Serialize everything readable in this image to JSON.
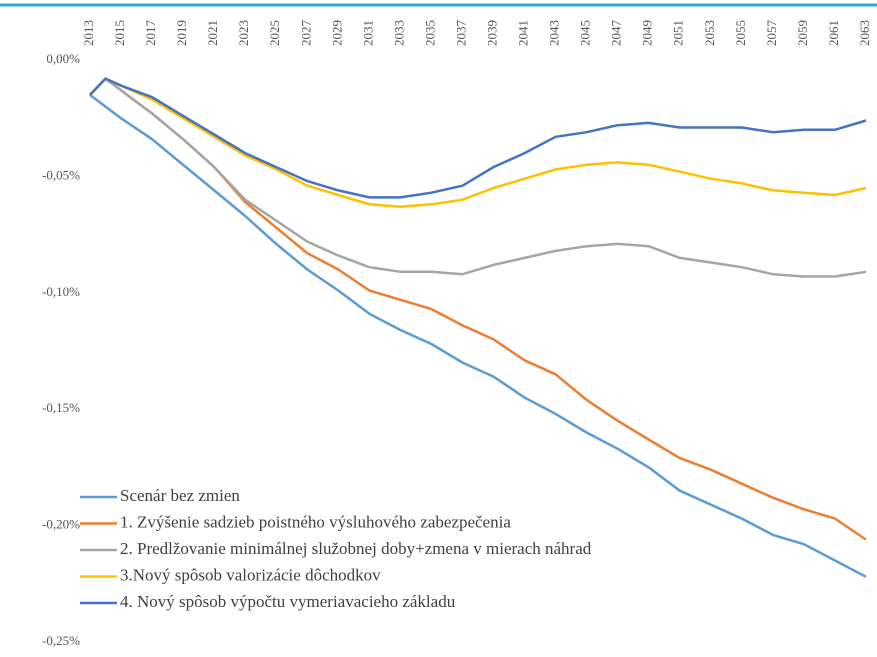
{
  "chart_data": {
    "type": "line",
    "x": [
      2013,
      2014,
      2015,
      2017,
      2019,
      2021,
      2023,
      2025,
      2027,
      2029,
      2031,
      2033,
      2035,
      2037,
      2039,
      2041,
      2043,
      2045,
      2047,
      2049,
      2051,
      2053,
      2055,
      2057,
      2059,
      2061,
      2063
    ],
    "xlim": [
      2013,
      2063
    ],
    "xticks": [
      2013,
      2015,
      2017,
      2019,
      2021,
      2023,
      2025,
      2027,
      2029,
      2031,
      2033,
      2035,
      2037,
      2039,
      2041,
      2043,
      2045,
      2047,
      2049,
      2051,
      2053,
      2055,
      2057,
      2059,
      2061,
      2063
    ],
    "ylim": [
      -0.25,
      0
    ],
    "yticks": [
      {
        "value": 0,
        "label": "0,00%"
      },
      {
        "value": -0.05,
        "label": "-0,05%"
      },
      {
        "value": -0.1,
        "label": "-0,10%"
      },
      {
        "value": -0.15,
        "label": "-0,15%"
      },
      {
        "value": -0.2,
        "label": "-0,20%"
      },
      {
        "value": -0.25,
        "label": "-0,25%"
      }
    ],
    "legend": "bottom-left",
    "series": [
      {
        "name": "Scenár bez zmien",
        "color": "#5b9bd5",
        "values": [
          -0.015,
          -0.02,
          -0.025,
          -0.034,
          -0.045,
          -0.056,
          -0.067,
          -0.079,
          -0.09,
          -0.099,
          -0.109,
          -0.116,
          -0.122,
          -0.13,
          -0.136,
          -0.145,
          -0.152,
          -0.16,
          -0.167,
          -0.175,
          -0.185,
          -0.191,
          -0.197,
          -0.204,
          -0.208,
          -0.215,
          -0.222
        ]
      },
      {
        "name": "1. Zvýšenie sadzieb poistného výsluhového zabezpečenia",
        "color": "#ed7d31",
        "values": [
          -0.015,
          -0.008,
          -0.013,
          -0.023,
          -0.034,
          -0.046,
          -0.061,
          -0.072,
          -0.083,
          -0.09,
          -0.099,
          -0.103,
          -0.107,
          -0.114,
          -0.12,
          -0.129,
          -0.135,
          -0.146,
          -0.155,
          -0.163,
          -0.171,
          -0.176,
          -0.182,
          -0.188,
          -0.193,
          -0.197,
          -0.206
        ]
      },
      {
        "name": "2. Predlžovanie minimálnej služobnej doby+zmena v mierach náhrad",
        "color": "#a5a5a5",
        "values": [
          -0.015,
          -0.008,
          -0.013,
          -0.023,
          -0.034,
          -0.046,
          -0.06,
          -0.069,
          -0.078,
          -0.084,
          -0.089,
          -0.091,
          -0.091,
          -0.092,
          -0.088,
          -0.085,
          -0.082,
          -0.08,
          -0.079,
          -0.08,
          -0.085,
          -0.087,
          -0.089,
          -0.092,
          -0.093,
          -0.093,
          -0.091
        ]
      },
      {
        "name": "3.Nový spôsob valorizácie dôchodkov",
        "color": "#ffc000",
        "values": [
          -0.015,
          -0.008,
          -0.011,
          -0.017,
          -0.025,
          -0.033,
          -0.041,
          -0.047,
          -0.054,
          -0.058,
          -0.062,
          -0.063,
          -0.062,
          -0.06,
          -0.055,
          -0.051,
          -0.047,
          -0.045,
          -0.044,
          -0.045,
          -0.048,
          -0.051,
          -0.053,
          -0.056,
          -0.057,
          -0.058,
          -0.055
        ]
      },
      {
        "name": "4. Nový spôsob výpočtu vymeriavacieho základu",
        "color": "#4472c4",
        "values": [
          -0.015,
          -0.008,
          -0.011,
          -0.016,
          -0.024,
          -0.032,
          -0.04,
          -0.046,
          -0.052,
          -0.056,
          -0.059,
          -0.059,
          -0.057,
          -0.054,
          -0.046,
          -0.04,
          -0.033,
          -0.031,
          -0.028,
          -0.027,
          -0.029,
          -0.029,
          -0.029,
          -0.031,
          -0.03,
          -0.03,
          -0.026
        ]
      }
    ]
  }
}
